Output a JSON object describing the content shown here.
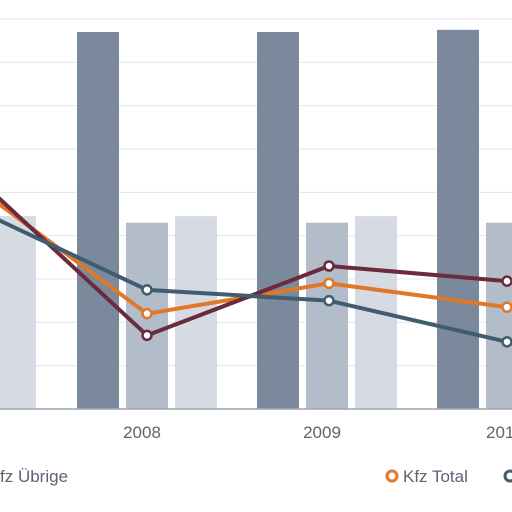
{
  "chart_data": {
    "type": "bar",
    "categories": [
      "2008",
      "2009",
      "201"
    ],
    "visible_partial_left_category": true,
    "grid": true,
    "legend_position": "bottom",
    "ylim": [
      0,
      9
    ],
    "bar_series": [
      {
        "color": "#7a8a9c",
        "values": [
          8.7,
          8.7,
          8.75
        ]
      },
      {
        "color": "#b3bcc9",
        "values": [
          4.3,
          4.3,
          4.3
        ]
      },
      {
        "color": "#d6dbe3",
        "values": [
          4.45,
          4.45
        ]
      }
    ],
    "left_partial_bar": {
      "color": "#d6dbe3",
      "value": 4.45
    },
    "line_series": [
      {
        "name": "Kfz Total",
        "color": "#e0782a",
        "values": [
          4.8,
          2.2,
          2.9,
          2.35
        ]
      },
      {
        "color": "#6b2a3e",
        "values": [
          4.95,
          1.7,
          3.3,
          2.95
        ]
      },
      {
        "color": "#3f5d6e",
        "values": [
          4.4,
          2.75,
          2.5,
          1.55
        ]
      }
    ],
    "x_labels": [
      "2008",
      "2009",
      "201"
    ],
    "legend": [
      {
        "label": "fz Übrige",
        "marker": "none"
      },
      {
        "label": "Kfz Total",
        "marker": "circle",
        "color": "#e0782a"
      },
      {
        "label": "",
        "marker": "circle",
        "color": "#3f5d6e"
      }
    ]
  }
}
